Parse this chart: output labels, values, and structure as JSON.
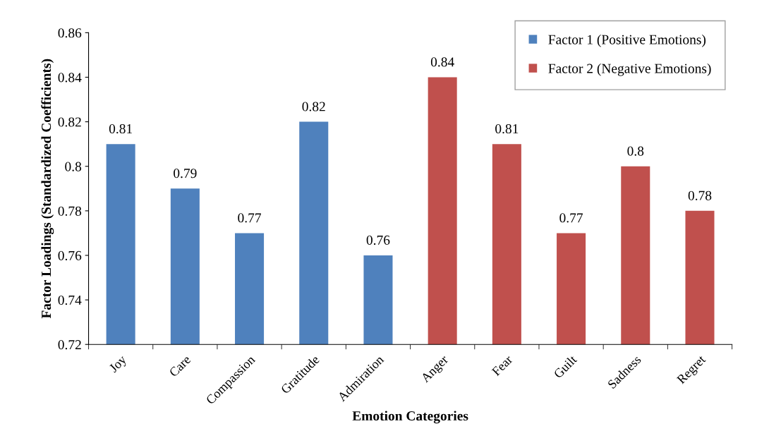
{
  "chart_data": {
    "type": "bar",
    "xlabel": "Emotion Categories",
    "ylabel": "Factor Loadings (Standardized Coefficients)",
    "categories": [
      "Joy",
      "Care",
      "Compassion",
      "Gratitude",
      "Admiration",
      "Anger",
      "Fear",
      "Guilt",
      "Sadness",
      "Regret"
    ],
    "series": [
      {
        "name": "Factor 1 (Positive Emotions)",
        "color": "#4f81bd",
        "values": [
          0.81,
          0.79,
          0.77,
          0.82,
          0.76,
          null,
          null,
          null,
          null,
          null
        ]
      },
      {
        "name": "Factor 2 (Negative Emotions)",
        "color": "#c0504d",
        "values": [
          null,
          null,
          null,
          null,
          null,
          0.84,
          0.81,
          0.77,
          0.8,
          0.78
        ]
      }
    ],
    "ylim": [
      0.72,
      0.86
    ],
    "yticks": [
      0.72,
      0.74,
      0.76,
      0.78,
      0.8,
      0.82,
      0.84,
      0.86
    ],
    "data_labels": true,
    "legend": "top right",
    "grid": false
  }
}
